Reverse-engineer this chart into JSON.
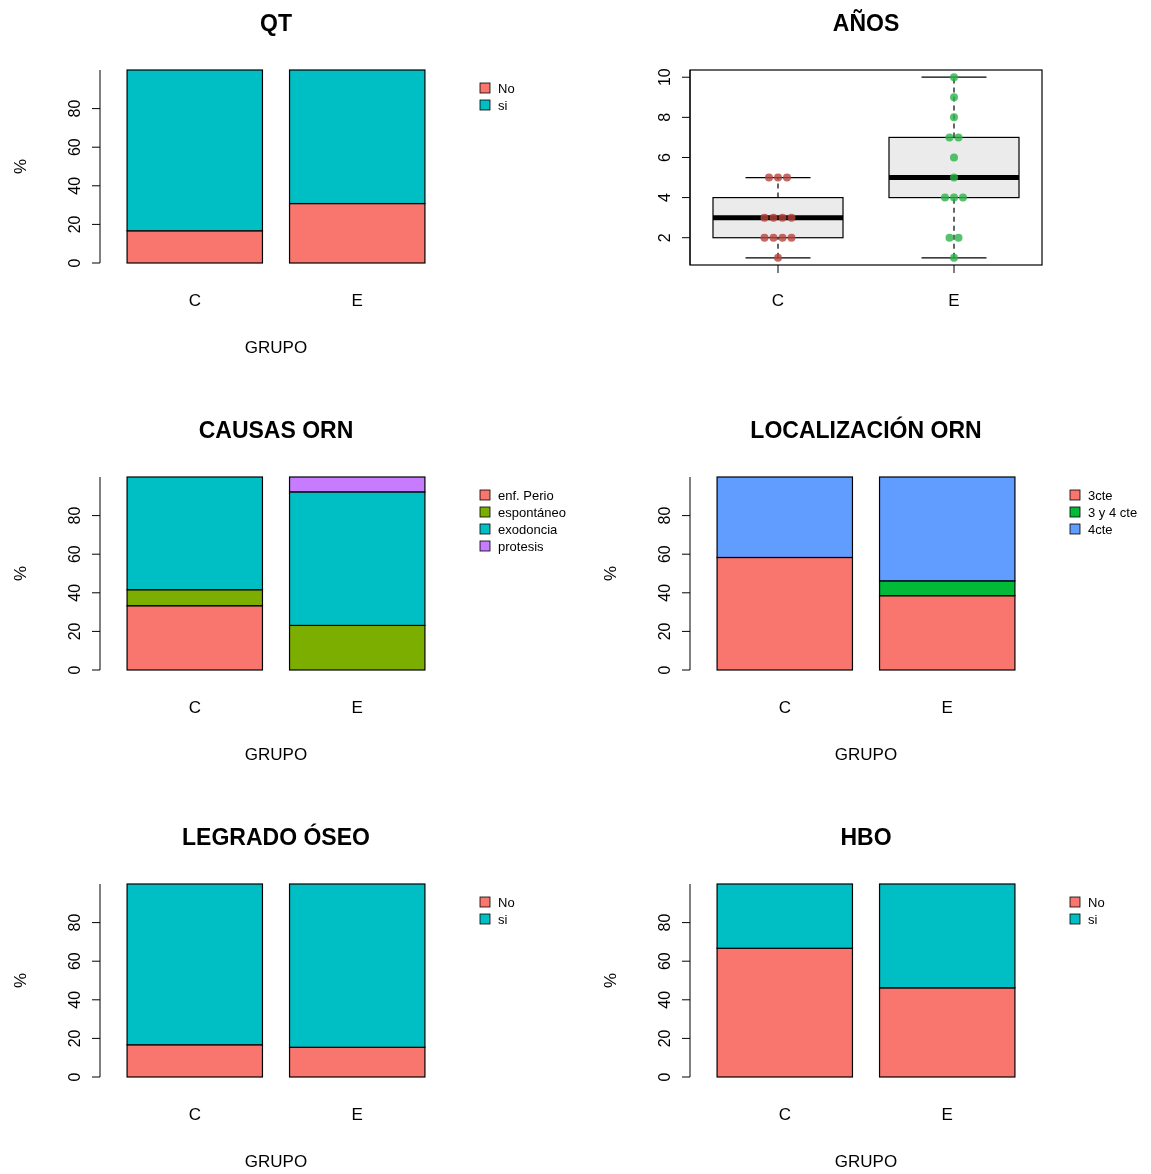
{
  "chart_data": [
    {
      "type": "bar",
      "stacked": true,
      "title": "QT",
      "xlabel": "GRUPO",
      "ylabel": "%",
      "categories": [
        "C",
        "E"
      ],
      "ylim": [
        0,
        100
      ],
      "yticks": [
        0,
        20,
        40,
        60,
        80
      ],
      "legend": "top right",
      "series": [
        {
          "name": "No",
          "color": "#f8766d",
          "values": [
            16.7,
            30.8
          ]
        },
        {
          "name": "si",
          "color": "#00bfc4",
          "values": [
            83.3,
            69.2
          ]
        }
      ]
    },
    {
      "type": "box",
      "title": "AÑOS",
      "categories": [
        "C",
        "E"
      ],
      "ylim": [
        0.64,
        10.36
      ],
      "yticks": [
        2,
        4,
        6,
        8,
        10
      ],
      "boxes": [
        {
          "low": 1,
          "q1": 2,
          "median": 3,
          "q3": 4,
          "high": 5
        },
        {
          "low": 1,
          "q1": 4,
          "median": 5,
          "q3": 7,
          "high": 10
        }
      ],
      "series": [
        {
          "type": "scatter",
          "color": "#b5443d",
          "x": [
            "C",
            "C",
            "C",
            "C",
            "C",
            "C",
            "C",
            "C",
            "C",
            "C",
            "C",
            "C"
          ],
          "values": [
            1,
            2,
            2,
            2,
            2,
            3,
            3,
            3,
            3,
            5,
            5,
            5
          ]
        },
        {
          "type": "scatter",
          "color": "#2db34a",
          "x": [
            "E",
            "E",
            "E",
            "E",
            "E",
            "E",
            "E",
            "E",
            "E",
            "E",
            "E",
            "E",
            "E"
          ],
          "values": [
            1,
            2,
            2,
            4,
            4,
            4,
            5,
            6,
            7,
            7,
            8,
            9,
            10
          ]
        }
      ]
    },
    {
      "type": "bar",
      "stacked": true,
      "title": "CAUSAS ORN",
      "xlabel": "GRUPO",
      "ylabel": "%",
      "categories": [
        "C",
        "E"
      ],
      "ylim": [
        0,
        100
      ],
      "yticks": [
        0,
        20,
        40,
        60,
        80
      ],
      "legend": "top right",
      "series": [
        {
          "name": "enf. Perio",
          "color": "#f8766d",
          "values": [
            33.3,
            0
          ]
        },
        {
          "name": "espontáneo",
          "color": "#7cae00",
          "values": [
            8.3,
            23.1
          ]
        },
        {
          "name": "exodoncia",
          "color": "#00bfc4",
          "values": [
            58.4,
            69.2
          ]
        },
        {
          "name": "protesis",
          "color": "#c77cff",
          "values": [
            0,
            7.7
          ]
        }
      ]
    },
    {
      "type": "bar",
      "stacked": true,
      "title": "LOCALIZACIÓN ORN",
      "xlabel": "GRUPO",
      "ylabel": "%",
      "categories": [
        "C",
        "E"
      ],
      "ylim": [
        0,
        100
      ],
      "yticks": [
        0,
        20,
        40,
        60,
        80
      ],
      "legend": "top right",
      "series": [
        {
          "name": "3cte",
          "color": "#f8766d",
          "values": [
            58.3,
            38.5
          ]
        },
        {
          "name": "3 y 4 cte",
          "color": "#00ba38",
          "values": [
            0,
            7.7
          ]
        },
        {
          "name": "4cte",
          "color": "#619cff",
          "values": [
            41.7,
            53.8
          ]
        }
      ]
    },
    {
      "type": "bar",
      "stacked": true,
      "title": "LEGRADO ÓSEO",
      "xlabel": "GRUPO",
      "ylabel": "%",
      "categories": [
        "C",
        "E"
      ],
      "ylim": [
        0,
        100
      ],
      "yticks": [
        0,
        20,
        40,
        60,
        80
      ],
      "legend": "top right",
      "series": [
        {
          "name": "No",
          "color": "#f8766d",
          "values": [
            16.7,
            15.4
          ]
        },
        {
          "name": "si",
          "color": "#00bfc4",
          "values": [
            83.3,
            84.6
          ]
        }
      ]
    },
    {
      "type": "bar",
      "stacked": true,
      "title": "HBO",
      "xlabel": "GRUPO",
      "ylabel": "%",
      "categories": [
        "C",
        "E"
      ],
      "ylim": [
        0,
        100
      ],
      "yticks": [
        0,
        20,
        40,
        60,
        80
      ],
      "legend": "top right",
      "series": [
        {
          "name": "No",
          "color": "#f8766d",
          "values": [
            66.7,
            46.2
          ]
        },
        {
          "name": "si",
          "color": "#00bfc4",
          "values": [
            33.3,
            53.8
          ]
        }
      ]
    }
  ]
}
